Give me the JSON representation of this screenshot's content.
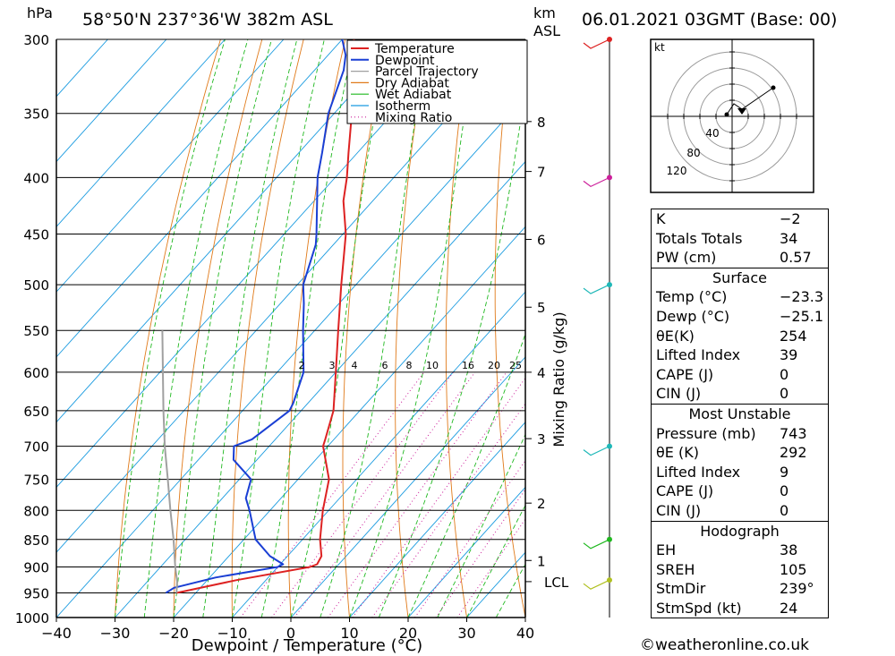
{
  "header": {
    "hpa_label": "hPa",
    "location": "58°50'N  237°36'W  382m  ASL",
    "km_label": "km",
    "asl_label": "ASL",
    "datetime": "06.01.2021  03GMT  (Base: 00)"
  },
  "legend": [
    {
      "label": "Temperature",
      "color": "#dd2222",
      "style": "solid"
    },
    {
      "label": "Dewpoint",
      "color": "#1a3fd4",
      "style": "solid"
    },
    {
      "label": "Parcel Trajectory",
      "color": "#a0a0a0",
      "style": "solid"
    },
    {
      "label": "Dry Adiabat",
      "color": "#e07a1a",
      "style": "solid"
    },
    {
      "label": "Wet Adiabat",
      "color": "#1fb81f",
      "style": "solid"
    },
    {
      "label": "Isotherm",
      "color": "#1a9be0",
      "style": "solid"
    },
    {
      "label": "Mixing Ratio",
      "color": "#cc1f9a",
      "style": "dotted"
    }
  ],
  "chart_data": {
    "type": "line",
    "title": "",
    "xlabel": "Dewpoint / Temperature (°C)",
    "ylabel": "hPa",
    "y2label": "Mixing Ratio (g/kg)",
    "xlim": [
      -40,
      40
    ],
    "ylim": [
      1000,
      300
    ],
    "x_ticks": [
      "−40",
      "−30",
      "−20",
      "−10",
      "0",
      "10",
      "20",
      "30",
      "40"
    ],
    "pressure_levels": [
      300,
      350,
      400,
      450,
      500,
      550,
      600,
      650,
      700,
      750,
      800,
      850,
      900,
      950,
      1000
    ],
    "km_ticks": [
      {
        "km": "8",
        "p": 356
      },
      {
        "km": "7",
        "p": 395
      },
      {
        "km": "6",
        "p": 455
      },
      {
        "km": "5",
        "p": 524
      },
      {
        "km": "4",
        "p": 600
      },
      {
        "km": "3",
        "p": 689
      },
      {
        "km": "2",
        "p": 788
      },
      {
        "km": "1",
        "p": 888
      }
    ],
    "lcl": {
      "label": "LCL",
      "p": 928
    },
    "mixing_ratio_labels": [
      "2",
      "3",
      "4",
      "6",
      "8",
      "10",
      "16",
      "20",
      "25"
    ],
    "mixing_ratio_values": [
      2,
      3,
      4,
      6,
      8,
      10,
      16,
      20,
      25
    ],
    "series": [
      {
        "name": "Temperature",
        "p": [
          950,
          925,
          900,
          895,
          880,
          850,
          800,
          750,
          700,
          690,
          650,
          600,
          550,
          500,
          450,
          420,
          400,
          380,
          350,
          330,
          320,
          310,
          300
        ],
        "t": [
          -23.3,
          -15,
          -4.5,
          -3.7,
          -4.2,
          -7,
          -11,
          -14.7,
          -20.8,
          -21.5,
          -24.5,
          -30,
          -36,
          -42.5,
          -49.5,
          -55,
          -58,
          -61.5,
          -67,
          -71,
          -73,
          -75.5,
          -78
        ]
      },
      {
        "name": "Dewpoint",
        "p": [
          950,
          940,
          920,
          900,
          895,
          880,
          850,
          800,
          780,
          750,
          720,
          700,
          690,
          650,
          640,
          600,
          550,
          520,
          500,
          460,
          450,
          400,
          380,
          350,
          320,
          310,
          300
        ],
        "t": [
          -25.1,
          -24.5,
          -19,
          -10,
          -9.5,
          -13,
          -18,
          -23.5,
          -26,
          -28,
          -34,
          -36,
          -34,
          -32,
          -32.5,
          -35.5,
          -42,
          -46,
          -49,
          -53,
          -54.5,
          -63,
          -66,
          -71,
          -75,
          -77,
          -80
        ]
      },
      {
        "name": "Parcel Trajectory",
        "p": [
          950,
          928,
          900,
          850,
          800,
          750,
          700,
          650,
          600,
          550
        ],
        "t": [
          -23.3,
          -24.9,
          -27.5,
          -32,
          -37,
          -42.2,
          -47.8,
          -53.5,
          -59.5,
          -66
        ]
      }
    ],
    "wind_profile": [
      {
        "p": 300,
        "color": "#dd2222"
      },
      {
        "p": 400,
        "color": "#cc1f9a"
      },
      {
        "p": 500,
        "color": "#1fb8b8"
      },
      {
        "p": 700,
        "color": "#1fb8b8"
      },
      {
        "p": 850,
        "color": "#1fb81f"
      },
      {
        "p": 925,
        "color": "#b0c020"
      }
    ]
  },
  "hodograph": {
    "unit_label": "kt",
    "ring_labels": [
      "40",
      "80",
      "120"
    ]
  },
  "indices": {
    "top": [
      {
        "label": "K",
        "value": "−2"
      },
      {
        "label": "Totals Totals",
        "value": "34"
      },
      {
        "label": "PW (cm)",
        "value": "0.57"
      }
    ],
    "surface_title": "Surface",
    "surface": [
      {
        "label": "Temp (°C)",
        "value": "−23.3"
      },
      {
        "label": "Dewp (°C)",
        "value": "−25.1"
      },
      {
        "label": "θE(K)",
        "value": "254"
      },
      {
        "label": "Lifted Index",
        "value": "39"
      },
      {
        "label": "CAPE (J)",
        "value": "0"
      },
      {
        "label": "CIN (J)",
        "value": "0"
      }
    ],
    "mu_title": "Most Unstable",
    "mu": [
      {
        "label": "Pressure (mb)",
        "value": "743"
      },
      {
        "label": "θE (K)",
        "value": "292"
      },
      {
        "label": "Lifted Index",
        "value": "9"
      },
      {
        "label": "CAPE (J)",
        "value": "0"
      },
      {
        "label": "CIN (J)",
        "value": "0"
      }
    ],
    "hodo_title": "Hodograph",
    "hodo": [
      {
        "label": "EH",
        "value": "38"
      },
      {
        "label": "SREH",
        "value": "105"
      },
      {
        "label": "StmDir",
        "value": "239°"
      },
      {
        "label": "StmSpd (kt)",
        "value": "24"
      }
    ]
  },
  "footer": {
    "copyright": "©weatheronline.co.uk"
  }
}
